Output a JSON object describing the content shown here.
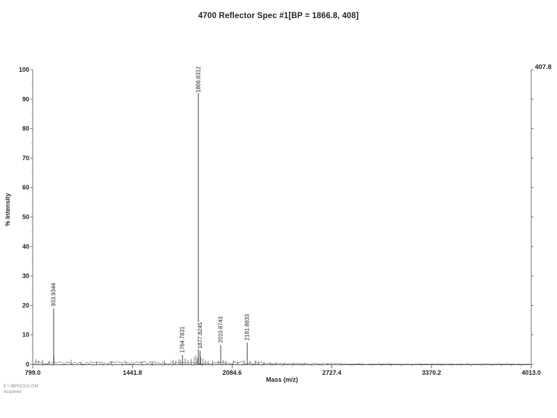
{
  "title": "4700 Reflector Spec #1[BP = 1866.8, 408]",
  "max_intensity_label": "407.8",
  "footer": {
    "line1": "E:\\ \\BP02311.GM",
    "line2": "Acquired"
  },
  "chart_data": {
    "type": "line",
    "subtype": "mass-spectrum",
    "title": "4700 Reflector Spec #1[BP = 1866.8, 408]",
    "xlabel": "Mass (m/z)",
    "ylabel": "% Intensity",
    "xlim": [
      799.0,
      4013.0
    ],
    "ylim": [
      0,
      100
    ],
    "x_ticks": [
      799.0,
      1441.8,
      2084.6,
      2727.4,
      3370.2,
      4013.0
    ],
    "y_ticks": [
      0,
      10,
      20,
      30,
      40,
      50,
      60,
      70,
      80,
      90,
      100
    ],
    "grid": false,
    "base_peak": {
      "mz": 1866.8,
      "abs_intensity": 408
    },
    "right_axis_top_label": "407.8",
    "labeled_peaks": [
      {
        "mz": 933.9344,
        "intensity": 19.0,
        "label": "933.9344"
      },
      {
        "mz": 1764.7831,
        "intensity": 3.2,
        "label": "1764.7831"
      },
      {
        "mz": 1866.8312,
        "intensity": 100.0,
        "label": "1866.8312"
      },
      {
        "mz": 1877.8245,
        "intensity": 4.6,
        "label": "1877.8245"
      },
      {
        "mz": 2010.8743,
        "intensity": 6.6,
        "label": "2010.8743"
      },
      {
        "mz": 2181.8833,
        "intensity": 7.4,
        "label": "2181.8833"
      }
    ],
    "minor_peaks": [
      {
        "mz": 820,
        "intensity": 1.8
      },
      {
        "mz": 838,
        "intensity": 1.2
      },
      {
        "mz": 862,
        "intensity": 1.5
      },
      {
        "mz": 905,
        "intensity": 1.2
      },
      {
        "mz": 936,
        "intensity": 3.0
      },
      {
        "mz": 1046,
        "intensity": 1.6
      },
      {
        "mz": 1110,
        "intensity": 1.0
      },
      {
        "mz": 1210,
        "intensity": 1.0
      },
      {
        "mz": 1306,
        "intensity": 1.2
      },
      {
        "mz": 1400,
        "intensity": 0.9
      },
      {
        "mz": 1500,
        "intensity": 1.0
      },
      {
        "mz": 1570,
        "intensity": 1.1
      },
      {
        "mz": 1650,
        "intensity": 1.3
      },
      {
        "mz": 1705,
        "intensity": 1.5
      },
      {
        "mz": 1722,
        "intensity": 1.2
      },
      {
        "mz": 1742,
        "intensity": 1.8
      },
      {
        "mz": 1752,
        "intensity": 1.5
      },
      {
        "mz": 1782,
        "intensity": 2.0
      },
      {
        "mz": 1800,
        "intensity": 1.5
      },
      {
        "mz": 1820,
        "intensity": 1.8
      },
      {
        "mz": 1840,
        "intensity": 2.5
      },
      {
        "mz": 1852,
        "intensity": 3.0
      },
      {
        "mz": 1860,
        "intensity": 2.2
      },
      {
        "mz": 1868,
        "intensity": 3.5
      },
      {
        "mz": 1883,
        "intensity": 2.5
      },
      {
        "mz": 1896,
        "intensity": 2.0
      },
      {
        "mz": 1912,
        "intensity": 1.5
      },
      {
        "mz": 1930,
        "intensity": 1.2
      },
      {
        "mz": 1960,
        "intensity": 1.3
      },
      {
        "mz": 1995,
        "intensity": 1.2
      },
      {
        "mz": 2028,
        "intensity": 1.5
      },
      {
        "mz": 2045,
        "intensity": 1.2
      },
      {
        "mz": 2092,
        "intensity": 1.3
      },
      {
        "mz": 2120,
        "intensity": 1.0
      },
      {
        "mz": 2163,
        "intensity": 1.5
      },
      {
        "mz": 2199,
        "intensity": 1.2
      },
      {
        "mz": 2233,
        "intensity": 1.3
      },
      {
        "mz": 2255,
        "intensity": 1.0
      },
      {
        "mz": 2290,
        "intensity": 0.8
      },
      {
        "mz": 2330,
        "intensity": 0.7
      },
      {
        "mz": 2367,
        "intensity": 0.8
      },
      {
        "mz": 2420,
        "intensity": 0.6
      },
      {
        "mz": 2480,
        "intensity": 0.5
      },
      {
        "mz": 2550,
        "intensity": 0.5
      },
      {
        "mz": 2700,
        "intensity": 0.4
      },
      {
        "mz": 2900,
        "intensity": 0.4
      },
      {
        "mz": 3100,
        "intensity": 0.3
      },
      {
        "mz": 3300,
        "intensity": 0.3
      },
      {
        "mz": 3600,
        "intensity": 0.3
      },
      {
        "mz": 3900,
        "intensity": 0.3
      }
    ],
    "axis_color": "#6a6a6a",
    "trace_color": "#3a3a3a"
  }
}
